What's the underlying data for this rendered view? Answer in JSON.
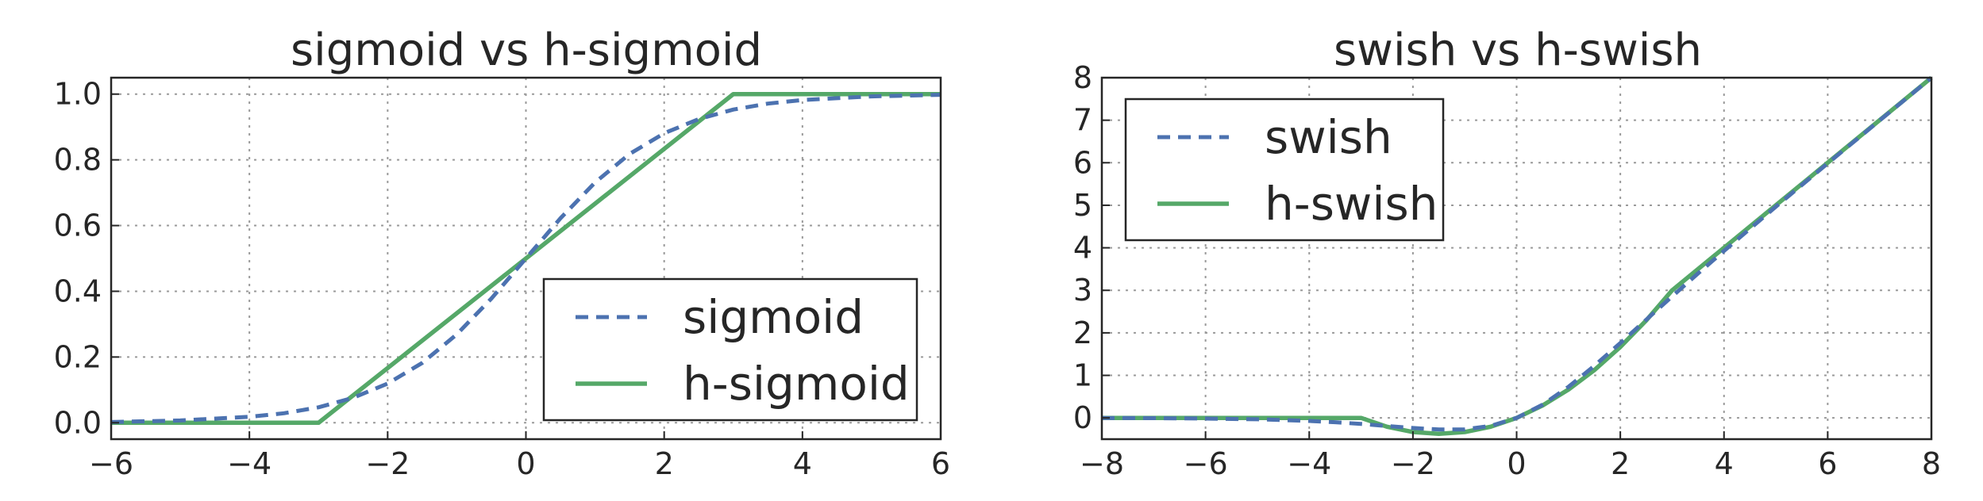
{
  "chart_data": [
    {
      "type": "line",
      "title": "sigmoid vs h-sigmoid",
      "xlabel": "",
      "ylabel": "",
      "xlim": [
        -6,
        6
      ],
      "ylim": [
        -0.05,
        1.05
      ],
      "xticks": [
        -6,
        -4,
        -2,
        0,
        2,
        4,
        6
      ],
      "xtick_labels": [
        "−6",
        "−4",
        "−2",
        "0",
        "2",
        "4",
        "6"
      ],
      "yticks": [
        0.0,
        0.2,
        0.4,
        0.6,
        0.8,
        1.0
      ],
      "ytick_labels": [
        "0.0",
        "0.2",
        "0.4",
        "0.6",
        "0.8",
        "1.0"
      ],
      "grid": true,
      "legend_position": "lower-right",
      "series": [
        {
          "name": "sigmoid",
          "style": "dashed",
          "color": "#4c72b0",
          "x": [
            -6,
            -5,
            -4,
            -3.5,
            -3,
            -2.5,
            -2,
            -1.5,
            -1,
            -0.5,
            0,
            0.5,
            1,
            1.5,
            2,
            2.5,
            3,
            3.5,
            4,
            5,
            6
          ],
          "y": [
            0.002,
            0.007,
            0.018,
            0.029,
            0.047,
            0.076,
            0.119,
            0.182,
            0.269,
            0.378,
            0.5,
            0.622,
            0.731,
            0.818,
            0.881,
            0.924,
            0.953,
            0.971,
            0.982,
            0.993,
            0.998
          ]
        },
        {
          "name": "h-sigmoid",
          "style": "solid",
          "color": "#55a868",
          "x": [
            -6,
            -3,
            3,
            6
          ],
          "y": [
            0,
            0,
            1,
            1
          ]
        }
      ]
    },
    {
      "type": "line",
      "title": "swish vs h-swish",
      "xlabel": "",
      "ylabel": "",
      "xlim": [
        -8,
        8
      ],
      "ylim": [
        -0.5,
        8
      ],
      "xticks": [
        -8,
        -6,
        -4,
        -2,
        0,
        2,
        4,
        6,
        8
      ],
      "xtick_labels": [
        "−8",
        "−6",
        "−4",
        "−2",
        "0",
        "2",
        "4",
        "6",
        "8"
      ],
      "yticks": [
        0,
        1,
        2,
        3,
        4,
        5,
        6,
        7,
        8
      ],
      "ytick_labels": [
        "0",
        "1",
        "2",
        "3",
        "4",
        "5",
        "6",
        "7",
        "8"
      ],
      "grid": true,
      "legend_position": "upper-left",
      "series": [
        {
          "name": "swish",
          "style": "dashed",
          "color": "#4c72b0",
          "x": [
            -8,
            -7,
            -6,
            -5,
            -4,
            -3.5,
            -3,
            -2.5,
            -2,
            -1.5,
            -1,
            -0.5,
            0,
            0.5,
            1,
            1.5,
            2,
            2.5,
            3,
            3.5,
            4,
            5,
            6,
            7,
            8
          ],
          "y": [
            -0.003,
            -0.006,
            -0.015,
            -0.033,
            -0.072,
            -0.102,
            -0.142,
            -0.19,
            -0.238,
            -0.273,
            -0.269,
            -0.189,
            0,
            0.311,
            0.731,
            1.227,
            1.762,
            2.31,
            2.858,
            3.398,
            3.928,
            4.967,
            5.985,
            6.994,
            7.997
          ]
        },
        {
          "name": "h-swish",
          "style": "solid",
          "color": "#55a868",
          "x": [
            -8,
            -3,
            -2.5,
            -2,
            -1.5,
            -1,
            -0.5,
            0,
            0.5,
            1,
            1.5,
            2,
            2.5,
            3,
            8
          ],
          "y": [
            0,
            0,
            -0.208,
            -0.333,
            -0.375,
            -0.333,
            -0.208,
            0,
            0.292,
            0.667,
            1.125,
            1.667,
            2.292,
            3,
            8
          ]
        }
      ]
    }
  ]
}
